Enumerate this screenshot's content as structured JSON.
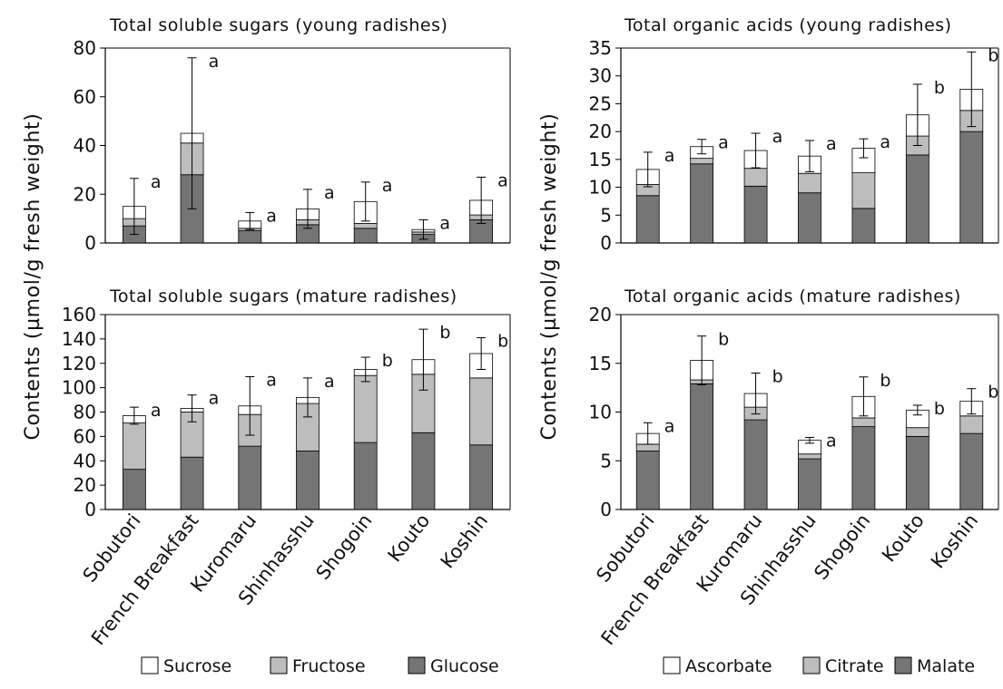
{
  "colors": {
    "Sucrose": "#ffffff",
    "Fructose": "#bdbdbd",
    "Glucose": "#757575",
    "Ascorbate": "#ffffff",
    "Citrate": "#bdbdbd",
    "Malate": "#757575"
  },
  "y_axis_label": "Contents (µmol/g fresh weight)",
  "categories": [
    "Sobutori",
    "French Breakfast",
    "Kuromaru",
    "Shinhasshu",
    "Shogoin",
    "Kouto",
    "Koshin"
  ],
  "legends": {
    "sugars": [
      "Sucrose",
      "Fructose",
      "Glucose"
    ],
    "acids": [
      "Ascorbate",
      "Citrate",
      "Malate"
    ]
  },
  "chart_data": [
    {
      "type": "bar",
      "stacked": true,
      "title": "Total soluble sugars (young radishes)",
      "categories": [
        "Sobutori",
        "French Breakfast",
        "Kuromaru",
        "Shinhasshu",
        "Shogoin",
        "Kouto",
        "Koshin"
      ],
      "ylim": [
        0,
        80
      ],
      "yticks": [
        0,
        20,
        40,
        60,
        80
      ],
      "series": [
        {
          "name": "Glucose",
          "values": [
            7,
            28,
            5,
            7.5,
            6,
            3.5,
            9.5
          ]
        },
        {
          "name": "Fructose",
          "values": [
            3,
            13,
            1,
            2,
            2,
            1,
            2
          ]
        },
        {
          "name": "Sucrose",
          "values": [
            5,
            4,
            3,
            4.5,
            9,
            1,
            6
          ]
        }
      ],
      "error_bars": [
        11.5,
        31,
        3.5,
        8,
        8,
        4,
        9.5
      ],
      "significance": [
        "a",
        "a",
        "a",
        "a",
        "a",
        "a",
        "a"
      ]
    },
    {
      "type": "bar",
      "stacked": true,
      "title": "Total organic acids (young radishes)",
      "categories": [
        "Sobutori",
        "French Breakfast",
        "Kuromaru",
        "Shinhasshu",
        "Shogoin",
        "Kouto",
        "Koshin"
      ],
      "ylim": [
        0,
        35
      ],
      "yticks": [
        0,
        5,
        10,
        15,
        20,
        25,
        30,
        35
      ],
      "series": [
        {
          "name": "Malate",
          "values": [
            8.5,
            14.2,
            10.2,
            9,
            6.2,
            15.8,
            20
          ]
        },
        {
          "name": "Citrate",
          "values": [
            2,
            1,
            3.2,
            3.5,
            6.4,
            3.4,
            3.8
          ]
        },
        {
          "name": "Ascorbate",
          "values": [
            2.7,
            2.1,
            3.2,
            3.1,
            4.4,
            3.8,
            3.8
          ]
        }
      ],
      "error_bars": [
        3.1,
        1.3,
        3.1,
        2.8,
        1.7,
        5.5,
        6.7
      ],
      "significance": [
        "a",
        "a",
        "a",
        "a",
        "a",
        "b",
        "b"
      ]
    },
    {
      "type": "bar",
      "stacked": true,
      "title": "Total soluble sugars (mature radishes)",
      "categories": [
        "Sobutori",
        "French Breakfast",
        "Kuromaru",
        "Shinhasshu",
        "Shogoin",
        "Kouto",
        "Koshin"
      ],
      "ylim": [
        0,
        160
      ],
      "yticks": [
        0,
        20,
        40,
        60,
        80,
        100,
        120,
        140,
        160
      ],
      "series": [
        {
          "name": "Glucose",
          "values": [
            33,
            43,
            52,
            48,
            55,
            63,
            53
          ]
        },
        {
          "name": "Fructose",
          "values": [
            38,
            37,
            26,
            39,
            55,
            48,
            55
          ]
        },
        {
          "name": "Sucrose",
          "values": [
            6,
            3,
            7,
            5,
            5,
            12,
            20
          ]
        }
      ],
      "error_bars": [
        7,
        11,
        24,
        16,
        10,
        25,
        13
      ],
      "significance": [
        "a",
        "a",
        "a",
        "a",
        "b",
        "b",
        "b"
      ]
    },
    {
      "type": "bar",
      "stacked": true,
      "title": "Total organic acids (mature radishes)",
      "categories": [
        "Sobutori",
        "French Breakfast",
        "Kuromaru",
        "Shinhasshu",
        "Shogoin",
        "Kouto",
        "Koshin"
      ],
      "ylim": [
        0,
        20
      ],
      "yticks": [
        0,
        5,
        10,
        15,
        20
      ],
      "series": [
        {
          "name": "Malate",
          "values": [
            6,
            12.9,
            9.2,
            5.2,
            8.5,
            7.5,
            7.8
          ]
        },
        {
          "name": "Citrate",
          "values": [
            0.7,
            0.4,
            1.3,
            0.5,
            0.9,
            0.9,
            1.8
          ]
        },
        {
          "name": "Ascorbate",
          "values": [
            1.1,
            2,
            1.4,
            1.4,
            2.2,
            1.8,
            1.5
          ]
        }
      ],
      "error_bars": [
        1.1,
        2.5,
        2.1,
        0.3,
        2,
        0.5,
        1.3
      ],
      "significance": [
        "a",
        "b",
        "b",
        "a",
        "b",
        "b",
        "b"
      ]
    }
  ]
}
